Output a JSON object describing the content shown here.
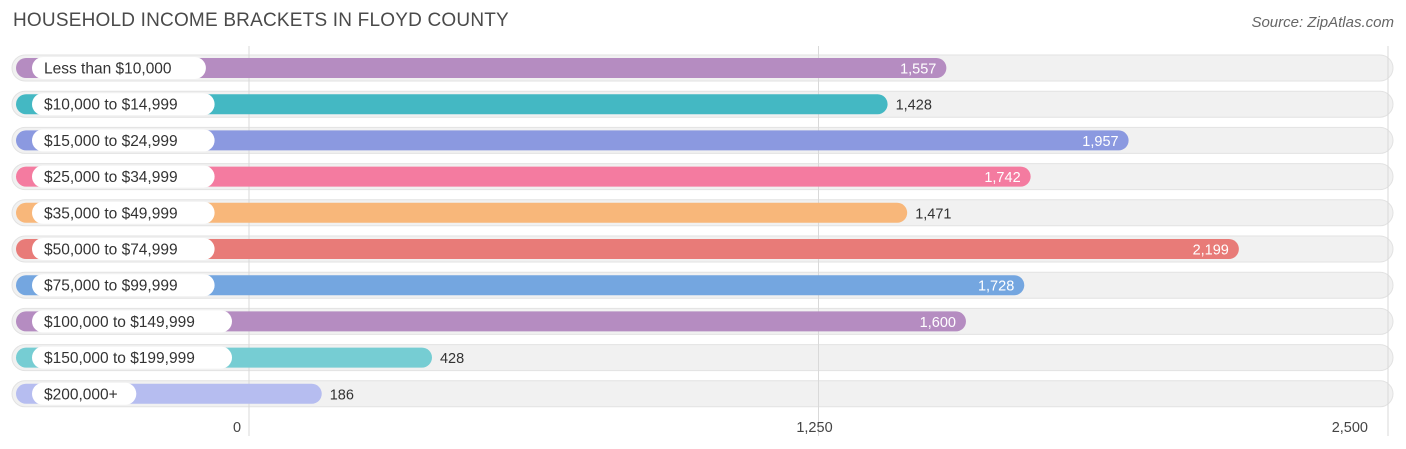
{
  "header": {
    "title": "HOUSEHOLD INCOME BRACKETS IN FLOYD COUNTY",
    "source": "Source: ZipAtlas.com"
  },
  "chart_data": {
    "type": "bar",
    "orientation": "horizontal",
    "title": "HOUSEHOLD INCOME BRACKETS IN FLOYD COUNTY",
    "categories": [
      "Less than $10,000",
      "$10,000 to $14,999",
      "$15,000 to $24,999",
      "$25,000 to $34,999",
      "$35,000 to $49,999",
      "$50,000 to $74,999",
      "$75,000 to $99,999",
      "$100,000 to $149,999",
      "$150,000 to $199,999",
      "$200,000+"
    ],
    "values": [
      1557,
      1428,
      1957,
      1742,
      1471,
      2199,
      1728,
      1600,
      428,
      186
    ],
    "value_labels": [
      "1,557",
      "1,428",
      "1,957",
      "1,742",
      "1,471",
      "2,199",
      "1,728",
      "1,600",
      "428",
      "186"
    ],
    "colors": [
      "#b58cc1",
      "#44b8c3",
      "#8b99e0",
      "#f47ba0",
      "#f8b77a",
      "#e87b78",
      "#74a6e0",
      "#b58cc1",
      "#76cdd3",
      "#b6bdf0"
    ],
    "xlim": [
      0,
      2500
    ],
    "xticks": [
      0,
      1250,
      2500
    ],
    "xtick_labels": [
      "0",
      "1,250",
      "2,500"
    ],
    "grid": true
  }
}
